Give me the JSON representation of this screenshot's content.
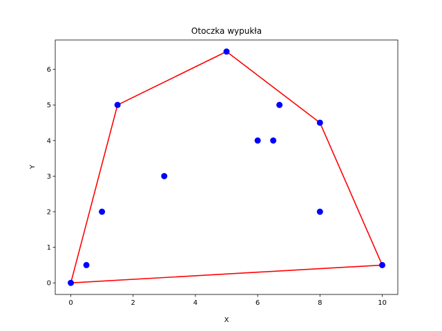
{
  "chart_data": {
    "type": "scatter",
    "title": "Otoczka wypukła",
    "xlabel": "X",
    "ylabel": "Y",
    "xlim": [
      -0.5,
      10.5
    ],
    "ylim": [
      -0.325,
      6.825
    ],
    "xticks": [
      0,
      2,
      4,
      6,
      8,
      10
    ],
    "yticks": [
      0,
      1,
      2,
      3,
      4,
      5,
      6
    ],
    "grid": false,
    "points": [
      {
        "x": 0,
        "y": 0
      },
      {
        "x": 0.5,
        "y": 0.5
      },
      {
        "x": 1,
        "y": 2
      },
      {
        "x": 1.5,
        "y": 5
      },
      {
        "x": 3,
        "y": 3
      },
      {
        "x": 5,
        "y": 6.5
      },
      {
        "x": 6,
        "y": 4
      },
      {
        "x": 6.5,
        "y": 4
      },
      {
        "x": 6.7,
        "y": 5
      },
      {
        "x": 8,
        "y": 4.5
      },
      {
        "x": 8,
        "y": 2
      },
      {
        "x": 10,
        "y": 0.5
      }
    ],
    "hull": [
      {
        "x": 0,
        "y": 0
      },
      {
        "x": 10,
        "y": 0.5
      },
      {
        "x": 8,
        "y": 4.5
      },
      {
        "x": 5,
        "y": 6.5
      },
      {
        "x": 1.5,
        "y": 5
      },
      {
        "x": 0,
        "y": 0
      }
    ],
    "point_color": "#0000ff",
    "hull_color": "#ff0000"
  }
}
